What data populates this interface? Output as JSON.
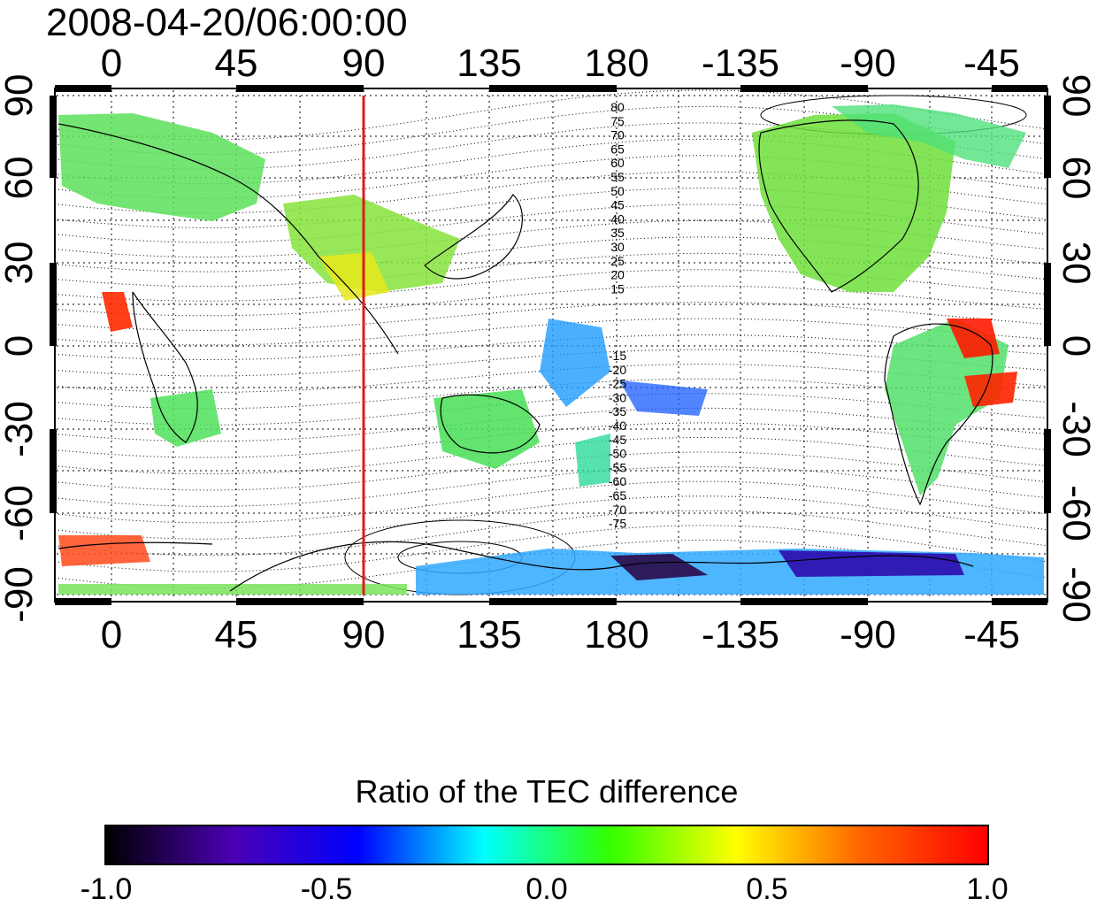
{
  "title": "2008-04-20/06:00:00",
  "map": {
    "lon_ticks": [
      "0",
      "45",
      "90",
      "135",
      "180",
      "-135",
      "-90",
      "-45"
    ],
    "lat_ticks": [
      "90",
      "60",
      "30",
      "0",
      "-30",
      "-60",
      "-90"
    ],
    "contour_labels": [
      "80",
      "75",
      "70",
      "65",
      "60",
      "55",
      "50",
      "45",
      "40",
      "35",
      "30",
      "25",
      "20",
      "15",
      "-15",
      "-20",
      "-25",
      "-30",
      "-35",
      "-40",
      "-45",
      "-50",
      "-55",
      "-60",
      "-65",
      "-70",
      "-75"
    ],
    "marker_line_longitude": 90,
    "marker_line_color": "#e01b1b"
  },
  "colorbar": {
    "title": "Ratio of the TEC difference",
    "min": -1.0,
    "max": 1.0,
    "tick_labels": [
      "-1.0",
      "-0.5",
      "0.0",
      "0.5",
      "1.0"
    ],
    "colors": [
      "#000000",
      "#4b00b4",
      "#0000ff",
      "#00ffff",
      "#32ff00",
      "#ffff00",
      "#ff6400",
      "#ff0000"
    ]
  }
}
